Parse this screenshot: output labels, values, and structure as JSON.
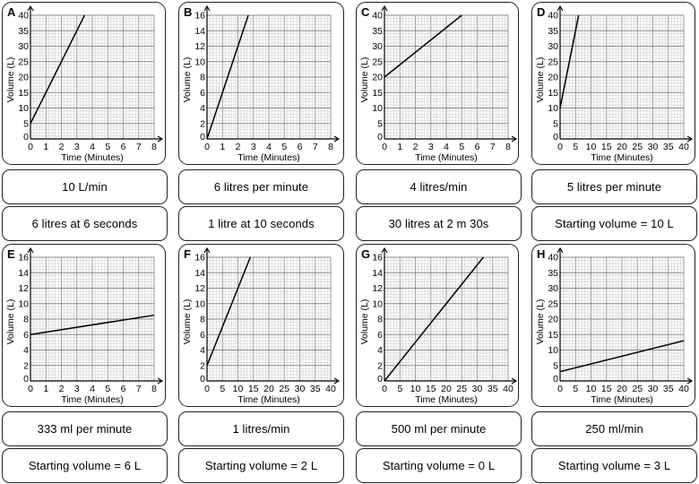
{
  "chart_data": [
    {
      "id": "A",
      "type": "line",
      "letter": "A",
      "xlabel": "Time (Minutes)",
      "ylabel": "Volume (L)",
      "xlim": [
        0,
        8
      ],
      "ylim": [
        0,
        40
      ],
      "xticks": [
        0,
        1,
        2,
        3,
        4,
        5,
        6,
        7,
        8
      ],
      "yticks": [
        0,
        5,
        10,
        15,
        20,
        25,
        30,
        35,
        40
      ],
      "x": [
        0,
        3.5
      ],
      "y": [
        5,
        40
      ]
    },
    {
      "id": "B",
      "type": "line",
      "letter": "B",
      "xlabel": "Time (Minutes)",
      "ylabel": "Volume (L)",
      "xlim": [
        0,
        8
      ],
      "ylim": [
        0,
        16
      ],
      "xticks": [
        0,
        1,
        2,
        3,
        4,
        5,
        6,
        7,
        8
      ],
      "yticks": [
        0,
        2,
        4,
        6,
        8,
        10,
        12,
        14,
        16
      ],
      "x": [
        0,
        2.67
      ],
      "y": [
        0,
        16
      ]
    },
    {
      "id": "C",
      "type": "line",
      "letter": "C",
      "xlabel": "Time (Minutes)",
      "ylabel": "Volume (L)",
      "xlim": [
        0,
        8
      ],
      "ylim": [
        0,
        40
      ],
      "xticks": [
        0,
        1,
        2,
        3,
        4,
        5,
        6,
        7,
        8
      ],
      "yticks": [
        0,
        5,
        10,
        15,
        20,
        25,
        30,
        35,
        40
      ],
      "x": [
        0,
        5
      ],
      "y": [
        20,
        40
      ]
    },
    {
      "id": "D",
      "type": "line",
      "letter": "D",
      "xlabel": "Time (Minutes)",
      "ylabel": "Volume (L)",
      "xlim": [
        0,
        40
      ],
      "ylim": [
        0,
        40
      ],
      "xticks": [
        0,
        5,
        10,
        15,
        20,
        25,
        30,
        35,
        40
      ],
      "yticks": [
        0,
        5,
        10,
        15,
        20,
        25,
        30,
        35,
        40
      ],
      "x": [
        0,
        6
      ],
      "y": [
        10,
        40
      ]
    },
    {
      "id": "E",
      "type": "line",
      "letter": "E",
      "xlabel": "Time (Minutes)",
      "ylabel": "Volume (L)",
      "xlim": [
        0,
        8
      ],
      "ylim": [
        0,
        16
      ],
      "xticks": [
        0,
        1,
        2,
        3,
        4,
        5,
        6,
        7,
        8
      ],
      "yticks": [
        0,
        2,
        4,
        6,
        8,
        10,
        12,
        14,
        16
      ],
      "x": [
        0,
        8
      ],
      "y": [
        6,
        8.5
      ]
    },
    {
      "id": "F",
      "type": "line",
      "letter": "F",
      "xlabel": "Time (Minutes)",
      "ylabel": "Volume (L)",
      "xlim": [
        0,
        40
      ],
      "ylim": [
        0,
        16
      ],
      "xticks": [
        0,
        5,
        10,
        15,
        20,
        25,
        30,
        35,
        40
      ],
      "yticks": [
        0,
        2,
        4,
        6,
        8,
        10,
        12,
        14,
        16
      ],
      "x": [
        0,
        14
      ],
      "y": [
        2,
        16
      ]
    },
    {
      "id": "G",
      "type": "line",
      "letter": "G",
      "xlabel": "Time (Minutes)",
      "ylabel": "Volume (L)",
      "xlim": [
        0,
        40
      ],
      "ylim": [
        0,
        16
      ],
      "xticks": [
        0,
        5,
        10,
        15,
        20,
        25,
        30,
        35,
        40
      ],
      "yticks": [
        0,
        2,
        4,
        6,
        8,
        10,
        12,
        14,
        16
      ],
      "x": [
        0,
        32
      ],
      "y": [
        0,
        16
      ]
    },
    {
      "id": "H",
      "type": "line",
      "letter": "H",
      "xlabel": "Time (Minutes)",
      "ylabel": "Volume (L)",
      "xlim": [
        0,
        40
      ],
      "ylim": [
        0,
        40
      ],
      "xticks": [
        0,
        5,
        10,
        15,
        20,
        25,
        30,
        35,
        40
      ],
      "yticks": [
        0,
        5,
        10,
        15,
        20,
        25,
        30,
        35,
        40
      ],
      "x": [
        0,
        40
      ],
      "y": [
        3,
        13
      ]
    }
  ],
  "cards": {
    "rate_top": [
      "10 L/min",
      "6 litres per minute",
      "4 litres/min",
      "5 litres per minute"
    ],
    "info_top": [
      "6 litres at 6 seconds",
      "1 litre at 10 seconds",
      "30 litres at 2 m 30s",
      "Starting volume = 10 L"
    ],
    "rate_bottom": [
      "333 ml per minute",
      "1 litres/min",
      "500 ml per minute",
      "250 ml/min"
    ],
    "info_bottom": [
      "Starting volume = 6 L",
      "Starting volume = 2 L",
      "Starting volume = 0 L",
      "Starting volume = 3 L"
    ]
  },
  "colors": {
    "line": "#000000",
    "major_grid": "#8a8a8a",
    "minor_grid": "#cfcfcf",
    "border": "#222222"
  }
}
